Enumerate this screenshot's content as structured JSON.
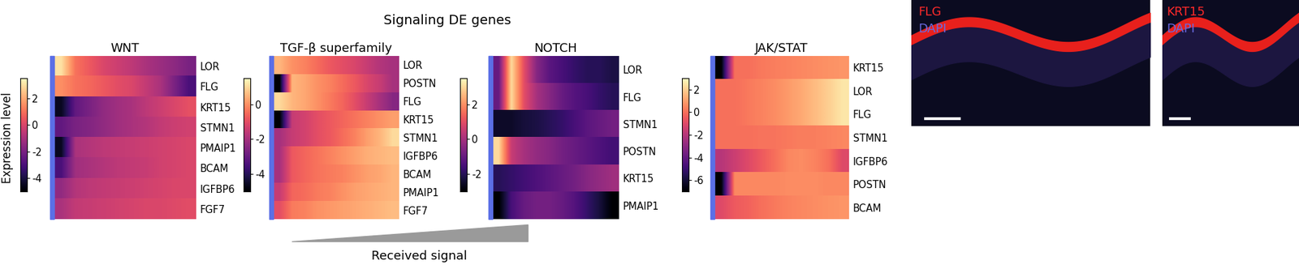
{
  "title": "Signaling DE genes",
  "colorbar_label": "Expression level",
  "x_label": "Received signal",
  "chart_data": [
    {
      "type": "heatmap",
      "title": "WNT",
      "tick_labels": "y",
      "rows": [
        "LOR",
        "FLG",
        "KRT15",
        "STMN1",
        "PMAIP1",
        "BCAM",
        "IGFBP6",
        "FGF7"
      ],
      "cells": [
        [
          3,
          1,
          0.5,
          0,
          -0.3,
          -0.6,
          -1,
          -1.3,
          -1.6,
          -2.0
        ],
        [
          1.5,
          1,
          0.8,
          0.5,
          0.2,
          0,
          -0.5,
          -1,
          -2,
          -3
        ],
        [
          -4.5,
          -2.5,
          -2,
          -1.5,
          -1.2,
          -1,
          -0.6,
          -0.3,
          0,
          0.3
        ],
        [
          -2.5,
          -2,
          -1.8,
          -1.5,
          -1.2,
          -1,
          -0.8,
          -0.5,
          -0.3,
          -0.2
        ],
        [
          -4.5,
          -1,
          -0.8,
          -0.6,
          -0.5,
          -0.4,
          -0.3,
          -0.2,
          -0.1,
          0
        ],
        [
          -3,
          -1.2,
          -1,
          -0.8,
          -0.6,
          -0.5,
          -0.4,
          -0.2,
          -0.1,
          0
        ],
        [
          -1.5,
          -0.8,
          -0.6,
          -0.5,
          -0.4,
          -0.3,
          -0.2,
          -0.1,
          0,
          0
        ],
        [
          -1,
          -0.5,
          -0.4,
          -0.3,
          -0.2,
          -0.1,
          0,
          0,
          0.1,
          0.2
        ]
      ],
      "colorbar_range": [
        -5,
        3.5
      ],
      "colorbar_ticks": [
        2,
        0,
        -2,
        -4
      ]
    },
    {
      "type": "heatmap",
      "title": "TGF-β superfamily",
      "tick_labels": "y",
      "rows": [
        "LOR",
        "POSTN",
        "FLG",
        "KRT15",
        "STMN1",
        "IGFBP6",
        "BCAM",
        "PMAIP1",
        "FGF7"
      ],
      "cells": [
        [
          0.5,
          0,
          -0.2,
          -0.5,
          -0.8,
          -1,
          -1.2,
          -1.5,
          -1.8,
          -2
        ],
        [
          -5,
          0.5,
          0.3,
          0,
          -0.2,
          -0.5,
          -0.8,
          -1.2,
          -1.5,
          -2
        ],
        [
          1,
          0.5,
          0.3,
          0,
          -0.3,
          -0.6,
          -1,
          -1.5,
          -2,
          -2.5
        ],
        [
          -5,
          -1.5,
          -1.3,
          -1,
          -0.8,
          -0.6,
          -0.4,
          -0.2,
          0,
          0.2
        ],
        [
          -2,
          -1.5,
          -1.3,
          -1,
          -0.8,
          -0.5,
          -0.2,
          0.2,
          0.5,
          1
        ],
        [
          -2,
          -0.8,
          -0.6,
          -0.4,
          -0.2,
          0,
          0.2,
          0.4,
          0.5,
          0.6
        ],
        [
          -2,
          -0.8,
          -0.6,
          -0.4,
          -0.3,
          -0.2,
          0,
          0.2,
          0.3,
          0.5
        ],
        [
          -1.5,
          -0.6,
          -0.5,
          -0.3,
          -0.2,
          0,
          0.2,
          0.3,
          0.4,
          0.5
        ],
        [
          -1,
          -0.3,
          -0.2,
          0,
          0.1,
          0.2,
          0.3,
          0.4,
          0.5,
          0.6
        ]
      ],
      "colorbar_range": [
        -5,
        1.5
      ],
      "colorbar_ticks": [
        0,
        -2,
        -4
      ]
    },
    {
      "type": "heatmap",
      "title": "NOTCH",
      "tick_labels": "y",
      "rows": [
        "LOR",
        "FLG",
        "STMN1",
        "POSTN",
        "KRT15",
        "PMAIP1"
      ],
      "cells": [
        [
          -1,
          3,
          1,
          -0.5,
          -1.2,
          -1.5,
          -1.8,
          -2,
          -2,
          -2.2
        ],
        [
          -1,
          3,
          1,
          0,
          -0.5,
          -1,
          -1.3,
          -1.5,
          -1.8,
          -2
        ],
        [
          -2.5,
          -2.5,
          -2.3,
          -2.2,
          -2,
          -1.8,
          -1.5,
          -1.2,
          -1,
          -0.8
        ],
        [
          3,
          0.5,
          0,
          -0.3,
          -0.5,
          -0.8,
          -1,
          -1.2,
          -1.4,
          -1.6
        ],
        [
          -2,
          -1.8,
          -1.6,
          -1.4,
          -1.2,
          -1,
          -0.8,
          -0.5,
          -0.3,
          -0.1
        ],
        [
          -3,
          -1.5,
          -1,
          -0.8,
          -0.8,
          -1,
          -1.3,
          -1.8,
          -2.3,
          -3
        ]
      ],
      "colorbar_range": [
        -3,
        3.5
      ],
      "colorbar_ticks": [
        2,
        0,
        -2
      ]
    },
    {
      "type": "heatmap",
      "title": "JAK/STAT",
      "tick_labels": "y",
      "rows": [
        "KRT15",
        "LOR",
        "FLG",
        "STMN1",
        "IGFBP6",
        "POSTN",
        "BCAM"
      ],
      "cells": [
        [
          -7,
          0,
          0,
          0.2,
          0.3,
          0.4,
          0.5,
          0.6,
          0.7,
          0.8
        ],
        [
          0,
          0,
          0.2,
          0.4,
          0.6,
          0.9,
          1.2,
          1.6,
          2,
          2.5
        ],
        [
          0,
          0,
          0.2,
          0.4,
          0.6,
          0.9,
          1.2,
          1.6,
          2,
          2.5
        ],
        [
          0,
          0,
          0,
          0.1,
          0.1,
          0.2,
          0.3,
          0.3,
          0.4,
          0.5
        ],
        [
          -2,
          -1.5,
          -1,
          -0.5,
          0,
          0.5,
          0.6,
          0.4,
          0,
          -1
        ],
        [
          -7,
          0.5,
          0.5,
          0.5,
          0.5,
          0.6,
          0.6,
          0.6,
          0.5,
          0.5
        ],
        [
          -1,
          -0.5,
          -0.3,
          0,
          0.2,
          0.4,
          0.5,
          0.6,
          0.7,
          0.8
        ]
      ],
      "colorbar_range": [
        -7,
        3
      ],
      "colorbar_ticks": [
        2,
        0,
        -2,
        -4,
        -6
      ]
    }
  ],
  "images": [
    {
      "labels": [
        {
          "text": "FLG",
          "color": "#ff2a2a"
        },
        {
          "text": "DAPI",
          "color": "#6a6ae0"
        }
      ]
    },
    {
      "labels": [
        {
          "text": "KRT15",
          "color": "#ff2a2a"
        },
        {
          "text": "DAPI",
          "color": "#6a6ae0"
        }
      ]
    }
  ]
}
